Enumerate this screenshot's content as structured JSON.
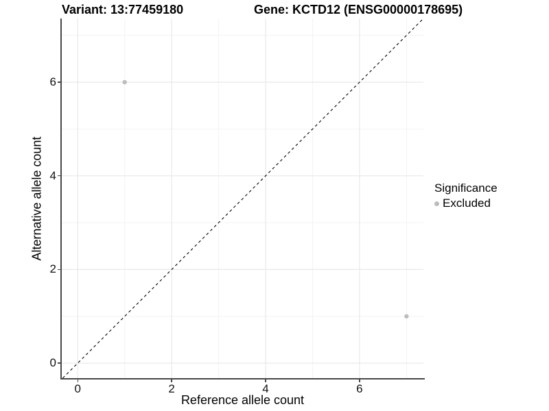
{
  "titles": {
    "left": "Variant: 13:77459180",
    "right": "Gene: KCTD12 (ENSG00000178695)"
  },
  "axes": {
    "x_label": "Reference allele count",
    "y_label": "Alternative allele count"
  },
  "legend": {
    "title": "Significance",
    "items": [
      {
        "label": "Excluded",
        "color": "#bcbcbc",
        "marker": "circle"
      }
    ]
  },
  "colors": {
    "background": "#ffffff",
    "axis_line": "#474747",
    "tick_mark": "#474747",
    "grid_major": "#e8e8e8",
    "grid_minor": "#f3f3f3",
    "point": "#bcbcbc",
    "identity_line": "#000000"
  },
  "chart_data": {
    "type": "scatter",
    "title": "Variant: 13:77459180 / Gene: KCTD12 (ENSG00000178695)",
    "xlabel": "Reference allele count",
    "ylabel": "Alternative allele count",
    "xlim": [
      -0.34,
      7.36
    ],
    "ylim": [
      -0.32,
      7.36
    ],
    "x_ticks": [
      0,
      2,
      4,
      6
    ],
    "y_ticks": [
      0,
      2,
      4,
      6
    ],
    "grid_major": [
      0,
      2,
      4,
      6
    ],
    "grid_minor": [
      1,
      3,
      5,
      7
    ],
    "grid": true,
    "legend_position": "right",
    "series": [
      {
        "name": "Excluded",
        "color": "#bcbcbc",
        "points": [
          {
            "x": 1,
            "y": 6
          },
          {
            "x": 7,
            "y": 1
          }
        ]
      }
    ],
    "identity_line": {
      "equation": "y = x",
      "style": "dashed",
      "from": -0.32,
      "to": 7.36
    }
  }
}
